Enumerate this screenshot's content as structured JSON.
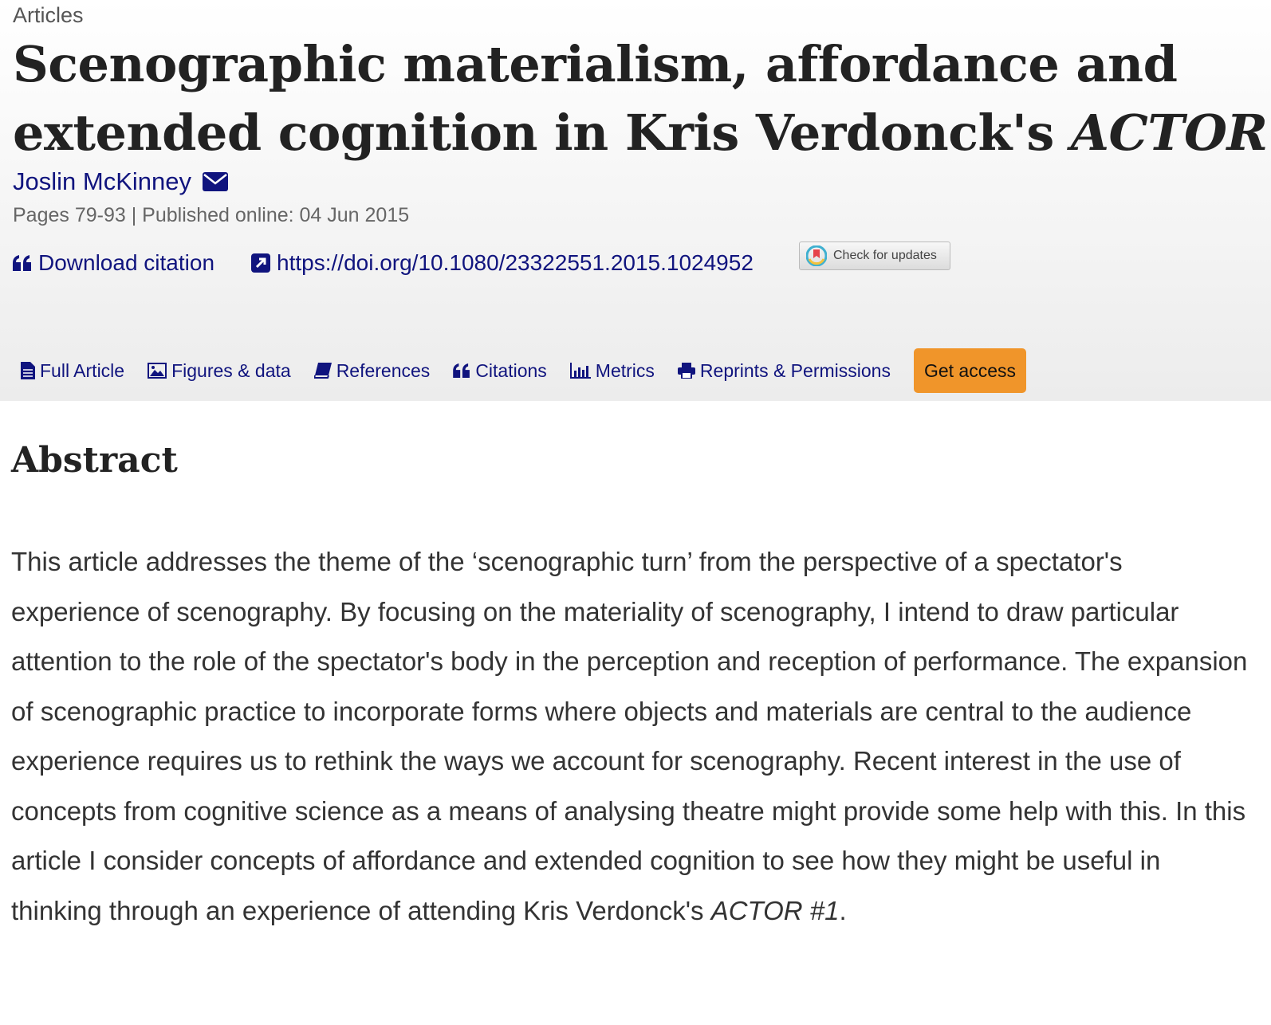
{
  "article_type": "Articles",
  "title": {
    "main": "Scenographic materialism, affordance and extended cognition in Kris Verdonck's ",
    "italic": "ACTOR"
  },
  "author": {
    "name": "Joslin McKinney",
    "icon": "envelope-icon"
  },
  "meta": "Pages 79-93 | Published online: 04 Jun 2015",
  "links": {
    "download_citation": "Download citation",
    "doi": "https://doi.org/10.1080/23322551.2015.1024952",
    "check_updates": "Check for updates"
  },
  "tabs": [
    {
      "label": "Full Article",
      "icon": "document-icon"
    },
    {
      "label": "Figures & data",
      "icon": "image-icon"
    },
    {
      "label": "References",
      "icon": "book-icon"
    },
    {
      "label": "Citations",
      "icon": "quote-icon"
    },
    {
      "label": "Metrics",
      "icon": "bar-chart-icon"
    },
    {
      "label": "Reprints & Permissions",
      "icon": "printer-icon"
    }
  ],
  "get_access": "Get access",
  "abstract": {
    "heading": "Abstract",
    "text": "This article addresses the theme of the ‘scenographic turn’ from the perspective of a spectator's experience of scenography. By focusing on the materiality of scenography, I intend to draw particular attention to the role of the spectator's body in the perception and reception of performance. The expansion of scenographic practice to incorporate forms where objects and materials are central to the audience experience requires us to rethink the ways we account for scenography. Recent interest in the use of concepts from cognitive science as a means of analysing theatre might provide some help with this. In this article I consider concepts of affordance and extended cognition to see how they might be useful in thinking through an experience of attending Kris Verdonck's ",
    "italic_end": "ACTOR #1",
    "end": "."
  },
  "colors": {
    "link": "#10147e",
    "accent": "#f0952a"
  }
}
